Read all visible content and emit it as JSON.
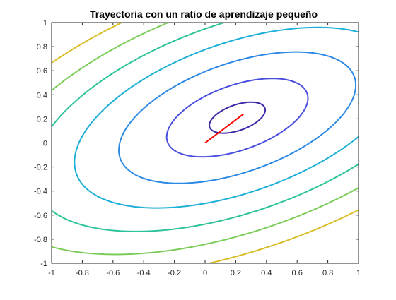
{
  "chart_data": {
    "type": "contour",
    "title": "Trayectoria con un ratio de aprendizaje pequeño",
    "xlabel": "",
    "ylabel": "",
    "xlim": [
      -1,
      1
    ],
    "ylim": [
      -1,
      1
    ],
    "xticks": [
      -1,
      -0.8,
      -0.6,
      -0.4,
      -0.2,
      0,
      0.2,
      0.4,
      0.6,
      0.8,
      1
    ],
    "yticks": [
      -1,
      -0.8,
      -0.6,
      -0.4,
      -0.2,
      0,
      0.2,
      0.4,
      0.6,
      0.8,
      1
    ],
    "xtick_labels": [
      "-1",
      "-0.8",
      "-0.6",
      "-0.4",
      "-0.2",
      "0",
      "0.2",
      "0.4",
      "0.6",
      "0.8",
      "1"
    ],
    "ytick_labels": [
      "-1",
      "-0.8",
      "-0.6",
      "-0.4",
      "-0.2",
      "0",
      "0.2",
      "0.4",
      "0.6",
      "0.8",
      "1"
    ],
    "grid": false,
    "contour_function": {
      "form": "a*x^2 + b*x*y + c*y^2",
      "a": 1,
      "b": -1.4,
      "c": 2,
      "center": [
        0.21,
        0.21
      ]
    },
    "contour_levels": [
      {
        "level": 0.025,
        "color": "#3b2aa8"
      },
      {
        "level": 0.16,
        "color": "#4a4fe0"
      },
      {
        "level": 0.45,
        "color": "#2d8ae4"
      },
      {
        "level": 0.85,
        "color": "#1eafd6"
      },
      {
        "level": 1.35,
        "color": "#2ec39a"
      },
      {
        "level": 1.95,
        "color": "#7ccc5a"
      },
      {
        "level": 2.65,
        "color": "#d9be28"
      }
    ],
    "series": [
      {
        "type": "line",
        "color": "#ff0000",
        "x": [
          0,
          0.25
        ],
        "y": [
          0,
          0.24
        ]
      }
    ]
  }
}
